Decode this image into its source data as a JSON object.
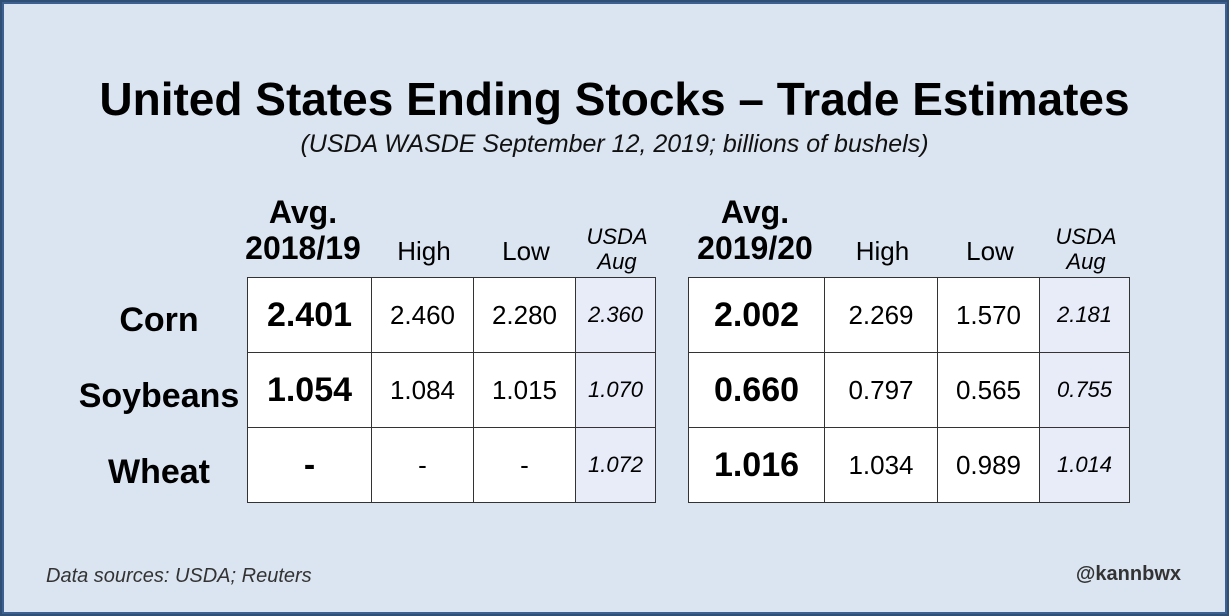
{
  "title": "United States Ending Stocks – Trade Estimates",
  "subtitle": "(USDA WASDE September 12, 2019; billions of bushels)",
  "tables": [
    {
      "headers": {
        "avg_line1": "Avg.",
        "avg_line2": "2018/19",
        "high": "High",
        "low": "Low",
        "usda_line1": "USDA",
        "usda_line2": "Aug"
      },
      "rows": [
        {
          "avg": "2.401",
          "high": "2.460",
          "low": "2.280",
          "usda": "2.360"
        },
        {
          "avg": "1.054",
          "high": "1.084",
          "low": "1.015",
          "usda": "1.070"
        },
        {
          "avg": "-",
          "high": "-",
          "low": "-",
          "usda": "1.072"
        }
      ]
    },
    {
      "headers": {
        "avg_line1": "Avg.",
        "avg_line2": "2019/20",
        "high": "High",
        "low": "Low",
        "usda_line1": "USDA",
        "usda_line2": "Aug"
      },
      "rows": [
        {
          "avg": "2.002",
          "high": "2.269",
          "low": "1.570",
          "usda": "2.181"
        },
        {
          "avg": "0.660",
          "high": "0.797",
          "low": "0.565",
          "usda": "0.755"
        },
        {
          "avg": "1.016",
          "high": "1.034",
          "low": "0.989",
          "usda": "1.014"
        }
      ]
    }
  ],
  "row_labels": [
    "Corn",
    "Soybeans",
    "Wheat"
  ],
  "footer": {
    "source": "Data sources: USDA; Reuters",
    "handle": "@kannbwx"
  }
}
